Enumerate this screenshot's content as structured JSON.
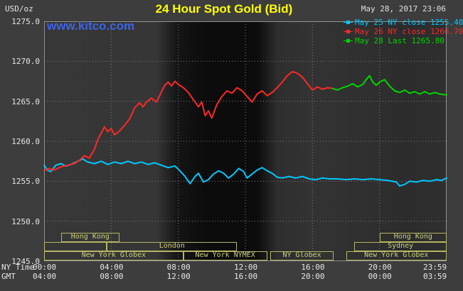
{
  "header": {
    "units_label": "USD/oz",
    "title": "24 Hour Spot Gold (Bid)",
    "datetime": "May 28, 2017 23:06",
    "website": "www.kitco.com"
  },
  "colors": {
    "background": "#3d3d3d",
    "title": "#ffff00",
    "axis_text": "#e6e6e6",
    "grid": "#808080",
    "plot_border": "#909090",
    "session_border": "#b5b565",
    "session_text": "#cdcd7f",
    "watermark": "#3c64e8"
  },
  "legend": [
    {
      "label": "May 25 NY close 1255.40",
      "color": "#00c8ff"
    },
    {
      "label": "May 26 NY close 1266.70",
      "color": "#ff2828"
    },
    {
      "label": "May 28 Last 1265.80",
      "color": "#00d400"
    }
  ],
  "axes": {
    "y_ticks": [
      "1275.0",
      "1270.0",
      "1265.0",
      "1260.0",
      "1255.0",
      "1250.0",
      "1245.0"
    ],
    "x_rows": [
      {
        "label": "NY Time",
        "ticks": [
          "00:00",
          "04:00",
          "08:00",
          "12:00",
          "16:00",
          "20:00",
          "23:59"
        ]
      },
      {
        "label": "GMT",
        "ticks": [
          "04:00",
          "08:00",
          "12:00",
          "16:00",
          "20:00",
          "00:00",
          "03:59"
        ]
      }
    ]
  },
  "sessions": [
    {
      "label": "Hong Kong",
      "row": 0,
      "start": 1.0,
      "end": 4.5
    },
    {
      "label": "",
      "row": 1,
      "start": 0.0,
      "end": 3.75
    },
    {
      "label": "London",
      "row": 1,
      "start": 3.75,
      "end": 11.5
    },
    {
      "label": "New York Globex",
      "row": 2,
      "start": 0.0,
      "end": 8.3
    },
    {
      "label": "New York NYMEX",
      "row": 2,
      "start": 8.3,
      "end": 13.3
    },
    {
      "label": "NY Globex",
      "row": 2,
      "start": 13.5,
      "end": 17.25
    },
    {
      "label": "New York Globex",
      "row": 2,
      "start": 18.0,
      "end": 24.0
    },
    {
      "label": "Sydney",
      "row": 1,
      "start": 18.5,
      "end": 24.0
    },
    {
      "label": "Hong Kong",
      "row": 0,
      "start": 20.0,
      "end": 24.0
    }
  ],
  "chart_data": {
    "type": "line",
    "title": "24 Hour Spot Gold (Bid)",
    "ylabel": "USD/oz",
    "ylim": [
      1245,
      1275
    ],
    "xlim": [
      0,
      24
    ],
    "x_unit": "hours, NY time",
    "x_tick_labels_ny": [
      "00:00",
      "04:00",
      "08:00",
      "12:00",
      "16:00",
      "20:00",
      "23:59"
    ],
    "x_tick_labels_gmt": [
      "04:00",
      "08:00",
      "12:00",
      "16:00",
      "20:00",
      "00:00",
      "03:59"
    ],
    "grid": true,
    "legend_position": "top-right",
    "series": [
      {
        "name": "May 25 NY close",
        "close_value": 1255.4,
        "color": "#00c8ff",
        "points": [
          [
            0,
            1257.0
          ],
          [
            0.2,
            1256.4
          ],
          [
            0.4,
            1256.2
          ],
          [
            0.7,
            1257.0
          ],
          [
            1,
            1257.2
          ],
          [
            1.3,
            1256.9
          ],
          [
            1.6,
            1257.1
          ],
          [
            2,
            1257.5
          ],
          [
            2.3,
            1257.8
          ],
          [
            2.6,
            1257.4
          ],
          [
            3,
            1257.2
          ],
          [
            3.4,
            1257.5
          ],
          [
            3.8,
            1257.1
          ],
          [
            4.2,
            1257.4
          ],
          [
            4.6,
            1257.2
          ],
          [
            5,
            1257.5
          ],
          [
            5.4,
            1257.2
          ],
          [
            5.8,
            1257.4
          ],
          [
            6.2,
            1257.1
          ],
          [
            6.6,
            1257.3
          ],
          [
            7,
            1257.0
          ],
          [
            7.4,
            1256.7
          ],
          [
            7.8,
            1256.9
          ],
          [
            8.1,
            1256.3
          ],
          [
            8.4,
            1255.6
          ],
          [
            8.7,
            1254.7
          ],
          [
            9,
            1255.6
          ],
          [
            9.2,
            1256.0
          ],
          [
            9.5,
            1254.9
          ],
          [
            9.8,
            1255.2
          ],
          [
            10.1,
            1255.9
          ],
          [
            10.4,
            1256.3
          ],
          [
            10.7,
            1256.0
          ],
          [
            11,
            1255.4
          ],
          [
            11.3,
            1255.9
          ],
          [
            11.6,
            1256.6
          ],
          [
            11.9,
            1256.2
          ],
          [
            12.1,
            1255.4
          ],
          [
            12.4,
            1255.9
          ],
          [
            12.7,
            1256.4
          ],
          [
            13,
            1256.7
          ],
          [
            13.3,
            1256.3
          ],
          [
            13.6,
            1256.0
          ],
          [
            13.9,
            1255.5
          ],
          [
            14.2,
            1255.4
          ],
          [
            14.6,
            1255.6
          ],
          [
            15,
            1255.4
          ],
          [
            15.4,
            1255.6
          ],
          [
            15.8,
            1255.3
          ],
          [
            16.2,
            1255.2
          ],
          [
            16.6,
            1255.4
          ],
          [
            17,
            1255.3
          ],
          [
            17.5,
            1255.3
          ],
          [
            18,
            1255.2
          ],
          [
            18.5,
            1255.3
          ],
          [
            19,
            1255.2
          ],
          [
            19.5,
            1255.3
          ],
          [
            20,
            1255.2
          ],
          [
            20.5,
            1255.1
          ],
          [
            21,
            1254.9
          ],
          [
            21.2,
            1254.4
          ],
          [
            21.5,
            1254.6
          ],
          [
            21.8,
            1255.0
          ],
          [
            22.2,
            1254.9
          ],
          [
            22.6,
            1255.1
          ],
          [
            23,
            1255.0
          ],
          [
            23.4,
            1255.2
          ],
          [
            23.7,
            1255.1
          ],
          [
            24,
            1255.4
          ]
        ]
      },
      {
        "name": "May 26 NY close",
        "close_value": 1266.7,
        "color": "#ff2828",
        "points": [
          [
            0,
            1256.3
          ],
          [
            0.3,
            1256.6
          ],
          [
            0.6,
            1256.4
          ],
          [
            1,
            1256.8
          ],
          [
            1.4,
            1257.0
          ],
          [
            1.8,
            1257.2
          ],
          [
            2.1,
            1257.6
          ],
          [
            2.4,
            1258.2
          ],
          [
            2.7,
            1257.9
          ],
          [
            3,
            1259.0
          ],
          [
            3.2,
            1260.2
          ],
          [
            3.4,
            1261.0
          ],
          [
            3.6,
            1261.8
          ],
          [
            3.8,
            1261.2
          ],
          [
            4,
            1261.6
          ],
          [
            4.2,
            1260.8
          ],
          [
            4.5,
            1261.3
          ],
          [
            4.8,
            1262.0
          ],
          [
            5.1,
            1262.8
          ],
          [
            5.4,
            1264.2
          ],
          [
            5.7,
            1264.8
          ],
          [
            5.9,
            1264.3
          ],
          [
            6.1,
            1264.9
          ],
          [
            6.4,
            1265.4
          ],
          [
            6.7,
            1264.9
          ],
          [
            7,
            1266.2
          ],
          [
            7.2,
            1267.0
          ],
          [
            7.4,
            1267.4
          ],
          [
            7.6,
            1266.9
          ],
          [
            7.8,
            1267.5
          ],
          [
            8,
            1267.1
          ],
          [
            8.3,
            1266.7
          ],
          [
            8.6,
            1266.1
          ],
          [
            8.9,
            1265.2
          ],
          [
            9.2,
            1264.3
          ],
          [
            9.4,
            1264.9
          ],
          [
            9.6,
            1263.2
          ],
          [
            9.8,
            1263.8
          ],
          [
            10,
            1262.9
          ],
          [
            10.3,
            1264.6
          ],
          [
            10.6,
            1265.6
          ],
          [
            10.9,
            1266.3
          ],
          [
            11.2,
            1266.0
          ],
          [
            11.5,
            1266.7
          ],
          [
            11.8,
            1266.3
          ],
          [
            12.1,
            1265.6
          ],
          [
            12.4,
            1264.9
          ],
          [
            12.7,
            1265.9
          ],
          [
            13,
            1266.3
          ],
          [
            13.3,
            1265.7
          ],
          [
            13.6,
            1266.1
          ],
          [
            13.9,
            1266.7
          ],
          [
            14.2,
            1267.4
          ],
          [
            14.5,
            1268.2
          ],
          [
            14.8,
            1268.7
          ],
          [
            15.1,
            1268.5
          ],
          [
            15.4,
            1268.0
          ],
          [
            15.7,
            1267.2
          ],
          [
            16,
            1266.4
          ],
          [
            16.3,
            1266.8
          ],
          [
            16.6,
            1266.5
          ],
          [
            16.9,
            1266.7
          ],
          [
            17.2,
            1266.6
          ]
        ]
      },
      {
        "name": "May 28 Last",
        "last_value": 1265.8,
        "color": "#00d400",
        "points": [
          [
            17.2,
            1266.6
          ],
          [
            17.5,
            1266.4
          ],
          [
            17.8,
            1266.7
          ],
          [
            18.1,
            1266.9
          ],
          [
            18.4,
            1267.2
          ],
          [
            18.7,
            1266.8
          ],
          [
            19,
            1267.1
          ],
          [
            19.2,
            1267.7
          ],
          [
            19.4,
            1268.2
          ],
          [
            19.6,
            1267.4
          ],
          [
            19.8,
            1267.0
          ],
          [
            20,
            1267.4
          ],
          [
            20.3,
            1267.7
          ],
          [
            20.6,
            1266.9
          ],
          [
            20.9,
            1266.3
          ],
          [
            21.2,
            1266.1
          ],
          [
            21.5,
            1266.4
          ],
          [
            21.8,
            1266.0
          ],
          [
            22.1,
            1266.2
          ],
          [
            22.4,
            1265.9
          ],
          [
            22.7,
            1266.2
          ],
          [
            23,
            1265.9
          ],
          [
            23.3,
            1266.1
          ],
          [
            23.6,
            1265.9
          ],
          [
            24,
            1265.8
          ]
        ]
      }
    ]
  }
}
